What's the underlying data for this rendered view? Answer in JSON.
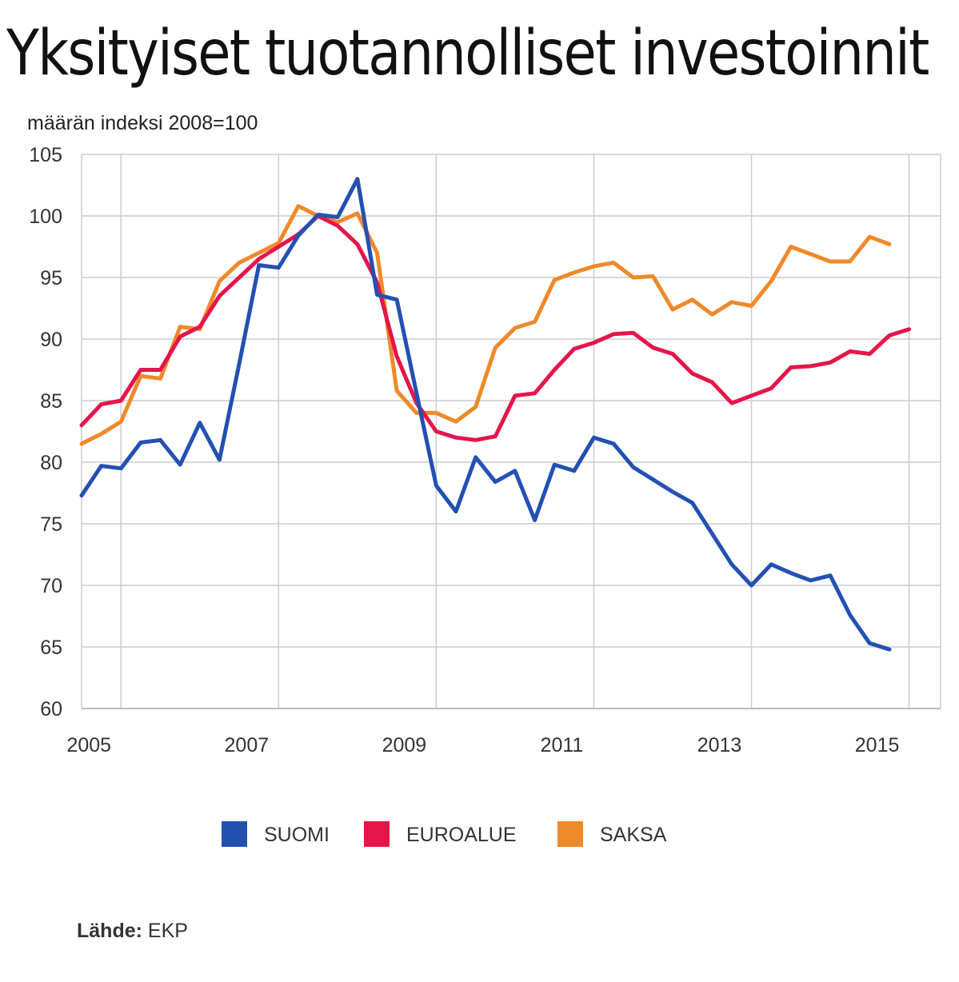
{
  "chart_data": {
    "type": "line",
    "title": "Yksityiset tuotannolliset investoinnit",
    "subtitle": "määrän indeksi 2008=100",
    "xlabel": "",
    "ylabel": "",
    "ylim": [
      60,
      105
    ],
    "yticks": [
      "60",
      "65",
      "70",
      "75",
      "80",
      "85",
      "90",
      "95",
      "100",
      "105"
    ],
    "xticks": [
      "2005",
      "2007",
      "2009",
      "2011",
      "2013",
      "2015"
    ],
    "grid": true,
    "legend_position": "bottom",
    "x": [
      "2004Q3",
      "2004Q4",
      "2005Q1",
      "2005Q2",
      "2005Q3",
      "2005Q4",
      "2006Q1",
      "2006Q2",
      "2006Q3",
      "2006Q4",
      "2007Q1",
      "2007Q2",
      "2007Q3",
      "2007Q4",
      "2008Q1",
      "2008Q2",
      "2008Q3",
      "2008Q4",
      "2009Q1",
      "2009Q2",
      "2009Q3",
      "2009Q4",
      "2010Q1",
      "2010Q2",
      "2010Q3",
      "2010Q4",
      "2011Q1",
      "2011Q2",
      "2011Q3",
      "2011Q4",
      "2012Q1",
      "2012Q2",
      "2012Q3",
      "2012Q4",
      "2013Q1",
      "2013Q2",
      "2013Q3",
      "2013Q4",
      "2014Q1",
      "2014Q2",
      "2014Q3",
      "2014Q4",
      "2015Q1"
    ],
    "series": [
      {
        "name": "SUOMI",
        "color": "#2350b3",
        "values": [
          77.3,
          79.7,
          79.5,
          81.6,
          81.8,
          79.8,
          83.2,
          80.2,
          88.0,
          96.0,
          95.8,
          98.4,
          100.1,
          99.9,
          103.0,
          93.6,
          93.2,
          85.6,
          78.1,
          76.0,
          80.4,
          78.4,
          79.3,
          75.3,
          79.8,
          79.3,
          82.0,
          81.5,
          79.6,
          78.6,
          77.6,
          76.7,
          74.2,
          71.7,
          70.0,
          71.7,
          71.0,
          70.4,
          70.8,
          67.6,
          65.3,
          64.8,
          null
        ]
      },
      {
        "name": "EUROALUE",
        "color": "#e5154a",
        "values": [
          83.0,
          84.7,
          85.0,
          87.5,
          87.5,
          90.2,
          91.0,
          93.5,
          95.0,
          96.5,
          97.5,
          98.5,
          100.0,
          99.2,
          97.7,
          94.6,
          88.6,
          84.8,
          82.5,
          82.0,
          81.8,
          82.1,
          85.4,
          85.6,
          87.5,
          89.2,
          89.7,
          90.4,
          90.5,
          89.3,
          88.8,
          87.2,
          86.5,
          84.8,
          85.4,
          86.0,
          87.7,
          87.8,
          88.1,
          89.0,
          88.8,
          90.3,
          90.8
        ]
      },
      {
        "name": "SAKSA",
        "color": "#f0892a",
        "values": [
          81.5,
          82.3,
          83.3,
          87.0,
          86.8,
          91.0,
          90.8,
          94.7,
          96.2,
          97.0,
          97.8,
          100.8,
          100.0,
          99.5,
          100.2,
          97.0,
          85.8,
          84.0,
          84.0,
          83.3,
          84.5,
          89.3,
          90.9,
          91.4,
          94.8,
          95.4,
          95.9,
          96.2,
          95.0,
          95.1,
          92.4,
          93.2,
          92.0,
          93.0,
          92.7,
          94.7,
          97.5,
          96.9,
          96.3,
          96.3,
          98.3,
          97.7,
          null
        ]
      }
    ]
  },
  "source": {
    "label": "Lähde:",
    "value": "EKP"
  }
}
